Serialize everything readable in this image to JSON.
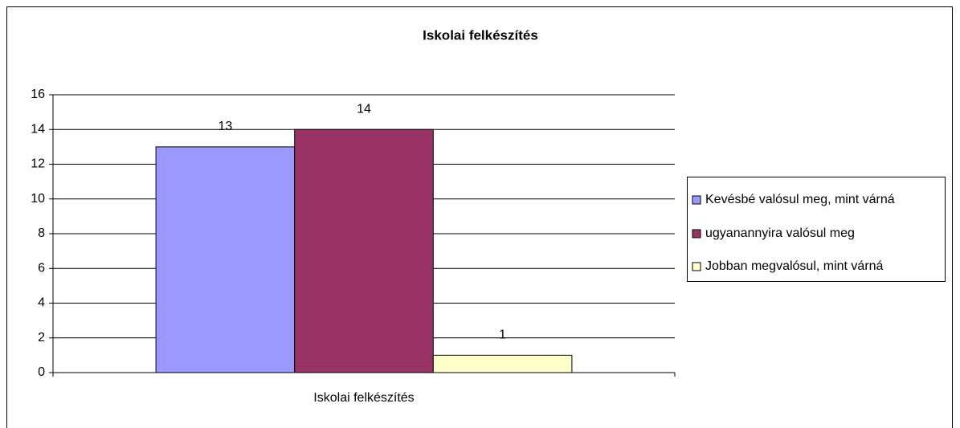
{
  "chart_data": {
    "type": "bar",
    "title": "Iskolai felkészítés",
    "categories": [
      "Iskolai felkészítés"
    ],
    "series": [
      {
        "name": "Kevésbé valósul meg, mint várná",
        "color": "#9999ff",
        "values": [
          13
        ]
      },
      {
        "name": "ugyanannyira valósul meg",
        "color": "#993366",
        "values": [
          14
        ]
      },
      {
        "name": "Jobban megvalósul, mint várná",
        "color": "#ffffcc",
        "values": [
          1
        ]
      }
    ],
    "ylim": [
      0,
      16
    ],
    "yticks": [
      0,
      2,
      4,
      6,
      8,
      10,
      12,
      14,
      16
    ],
    "grid": true,
    "legend": "right"
  }
}
